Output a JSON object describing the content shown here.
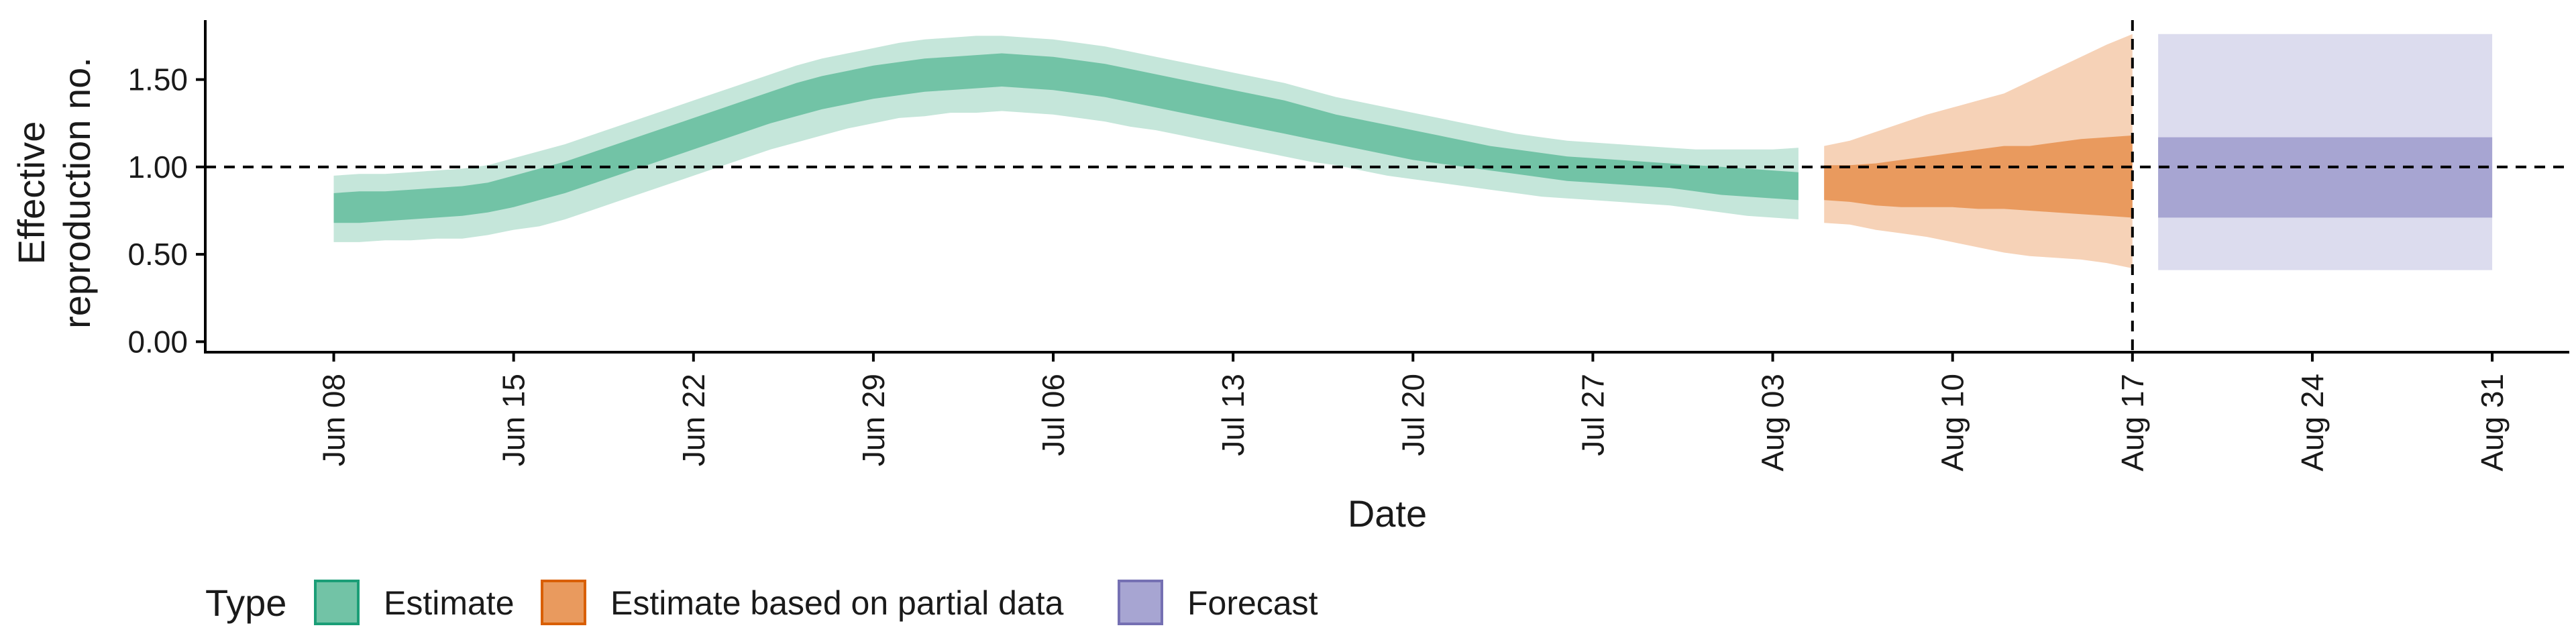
{
  "chart_data": {
    "type": "area",
    "xlabel": "Date",
    "ylabel_lines": [
      "Effective",
      "reproduction no."
    ],
    "x_range": [
      "2021-06-03",
      "2021-09-03"
    ],
    "ylim": [
      -0.06,
      1.84
    ],
    "y_ticks": [
      0,
      0.5,
      1,
      1.5
    ],
    "y_tick_labels": [
      "0.00",
      "0.50",
      "1.00",
      "1.50"
    ],
    "x_ticks": [
      "2021-06-08",
      "2021-06-15",
      "2021-06-22",
      "2021-06-29",
      "2021-07-06",
      "2021-07-13",
      "2021-07-20",
      "2021-07-27",
      "2021-08-03",
      "2021-08-10",
      "2021-08-17",
      "2021-08-24",
      "2021-08-31"
    ],
    "x_tick_labels": [
      "Jun 08",
      "Jun 15",
      "Jun 22",
      "Jun 29",
      "Jul 06",
      "Jul 13",
      "Jul 20",
      "Jul 27",
      "Aug 03",
      "Aug 10",
      "Aug 17",
      "Aug 24",
      "Aug 31"
    ],
    "reference_hline": 1.0,
    "reference_vline": "2021-08-17",
    "grid": false,
    "legend_placement": "bottom-left",
    "legend": {
      "title": "Type",
      "items": [
        {
          "label": "Estimate",
          "fill": "#72c3a6",
          "border": "#1b9e77"
        },
        {
          "label": "Estimate based on partial data",
          "fill": "#e99a5e",
          "border": "#d95f02"
        },
        {
          "label": "Forecast",
          "fill": "#a7a5d2",
          "border": "#7570b3"
        }
      ]
    },
    "series": [
      {
        "name": "Estimate",
        "colors": {
          "outer": "#c5e6da",
          "inner": "#72c3a6"
        },
        "dates": [
          "2021-06-08",
          "2021-06-09",
          "2021-06-10",
          "2021-06-11",
          "2021-06-12",
          "2021-06-13",
          "2021-06-14",
          "2021-06-15",
          "2021-06-16",
          "2021-06-17",
          "2021-06-18",
          "2021-06-19",
          "2021-06-20",
          "2021-06-21",
          "2021-06-22",
          "2021-06-23",
          "2021-06-24",
          "2021-06-25",
          "2021-06-26",
          "2021-06-27",
          "2021-06-28",
          "2021-06-29",
          "2021-06-30",
          "2021-07-01",
          "2021-07-02",
          "2021-07-03",
          "2021-07-04",
          "2021-07-05",
          "2021-07-06",
          "2021-07-07",
          "2021-07-08",
          "2021-07-09",
          "2021-07-10",
          "2021-07-11",
          "2021-07-12",
          "2021-07-13",
          "2021-07-14",
          "2021-07-15",
          "2021-07-16",
          "2021-07-17",
          "2021-07-18",
          "2021-07-19",
          "2021-07-20",
          "2021-07-21",
          "2021-07-22",
          "2021-07-23",
          "2021-07-24",
          "2021-07-25",
          "2021-07-26",
          "2021-07-27",
          "2021-07-28",
          "2021-07-29",
          "2021-07-30",
          "2021-07-31",
          "2021-08-01",
          "2021-08-02",
          "2021-08-03",
          "2021-08-04"
        ],
        "outer_low": [
          0.57,
          0.57,
          0.58,
          0.58,
          0.59,
          0.59,
          0.61,
          0.64,
          0.66,
          0.7,
          0.75,
          0.8,
          0.85,
          0.9,
          0.95,
          1.0,
          1.05,
          1.1,
          1.14,
          1.18,
          1.22,
          1.25,
          1.28,
          1.29,
          1.31,
          1.31,
          1.32,
          1.31,
          1.3,
          1.28,
          1.26,
          1.23,
          1.21,
          1.18,
          1.15,
          1.12,
          1.09,
          1.06,
          1.03,
          1.01,
          0.98,
          0.95,
          0.93,
          0.91,
          0.89,
          0.87,
          0.85,
          0.83,
          0.82,
          0.81,
          0.8,
          0.79,
          0.78,
          0.76,
          0.74,
          0.72,
          0.71,
          0.7
        ],
        "inner_low": [
          0.68,
          0.68,
          0.69,
          0.7,
          0.71,
          0.72,
          0.74,
          0.77,
          0.81,
          0.85,
          0.9,
          0.95,
          1.0,
          1.05,
          1.1,
          1.15,
          1.2,
          1.25,
          1.29,
          1.33,
          1.36,
          1.39,
          1.41,
          1.43,
          1.44,
          1.45,
          1.46,
          1.45,
          1.44,
          1.42,
          1.4,
          1.37,
          1.34,
          1.31,
          1.28,
          1.25,
          1.22,
          1.19,
          1.16,
          1.13,
          1.1,
          1.07,
          1.04,
          1.02,
          1.0,
          0.98,
          0.96,
          0.94,
          0.92,
          0.91,
          0.9,
          0.89,
          0.88,
          0.86,
          0.84,
          0.83,
          0.82,
          0.81
        ],
        "inner_high": [
          0.85,
          0.86,
          0.86,
          0.87,
          0.88,
          0.89,
          0.91,
          0.95,
          0.99,
          1.03,
          1.08,
          1.13,
          1.18,
          1.23,
          1.28,
          1.33,
          1.38,
          1.43,
          1.48,
          1.52,
          1.55,
          1.58,
          1.6,
          1.62,
          1.63,
          1.64,
          1.65,
          1.64,
          1.63,
          1.61,
          1.59,
          1.56,
          1.53,
          1.5,
          1.47,
          1.44,
          1.41,
          1.38,
          1.34,
          1.3,
          1.27,
          1.24,
          1.21,
          1.18,
          1.15,
          1.12,
          1.1,
          1.08,
          1.06,
          1.05,
          1.04,
          1.03,
          1.02,
          1.01,
          1.0,
          0.99,
          0.98,
          0.97
        ],
        "outer_high": [
          0.95,
          0.96,
          0.96,
          0.97,
          0.98,
          0.99,
          1.01,
          1.05,
          1.09,
          1.13,
          1.18,
          1.23,
          1.28,
          1.33,
          1.38,
          1.43,
          1.48,
          1.53,
          1.58,
          1.62,
          1.65,
          1.68,
          1.71,
          1.73,
          1.74,
          1.75,
          1.75,
          1.74,
          1.73,
          1.71,
          1.69,
          1.66,
          1.63,
          1.6,
          1.57,
          1.54,
          1.51,
          1.48,
          1.44,
          1.4,
          1.37,
          1.34,
          1.31,
          1.28,
          1.25,
          1.22,
          1.19,
          1.17,
          1.15,
          1.14,
          1.13,
          1.12,
          1.11,
          1.1,
          1.1,
          1.1,
          1.1,
          1.11
        ]
      },
      {
        "name": "Estimate based on partial data",
        "colors": {
          "outer": "#f6d2b7",
          "inner": "#e99a5e"
        },
        "dates": [
          "2021-08-05",
          "2021-08-06",
          "2021-08-07",
          "2021-08-08",
          "2021-08-09",
          "2021-08-10",
          "2021-08-11",
          "2021-08-12",
          "2021-08-13",
          "2021-08-14",
          "2021-08-15",
          "2021-08-16",
          "2021-08-17"
        ],
        "outer_low": [
          0.68,
          0.67,
          0.64,
          0.62,
          0.6,
          0.57,
          0.54,
          0.51,
          0.49,
          0.48,
          0.47,
          0.45,
          0.42
        ],
        "inner_low": [
          0.81,
          0.8,
          0.78,
          0.77,
          0.77,
          0.77,
          0.76,
          0.76,
          0.75,
          0.74,
          0.73,
          0.72,
          0.71
        ],
        "inner_high": [
          1.01,
          1.01,
          1.02,
          1.04,
          1.06,
          1.08,
          1.1,
          1.12,
          1.12,
          1.14,
          1.16,
          1.17,
          1.18
        ],
        "outer_high": [
          1.12,
          1.15,
          1.2,
          1.25,
          1.3,
          1.34,
          1.38,
          1.42,
          1.49,
          1.56,
          1.63,
          1.7,
          1.76
        ]
      },
      {
        "name": "Forecast",
        "colors": {
          "outer": "#dcdcee",
          "inner": "#a7a5d2"
        },
        "dates": [
          "2021-08-18",
          "2021-08-31"
        ],
        "outer_low": [
          0.41,
          0.41
        ],
        "inner_low": [
          0.71,
          0.71
        ],
        "inner_high": [
          1.17,
          1.17
        ],
        "outer_high": [
          1.76,
          1.76
        ]
      }
    ]
  }
}
